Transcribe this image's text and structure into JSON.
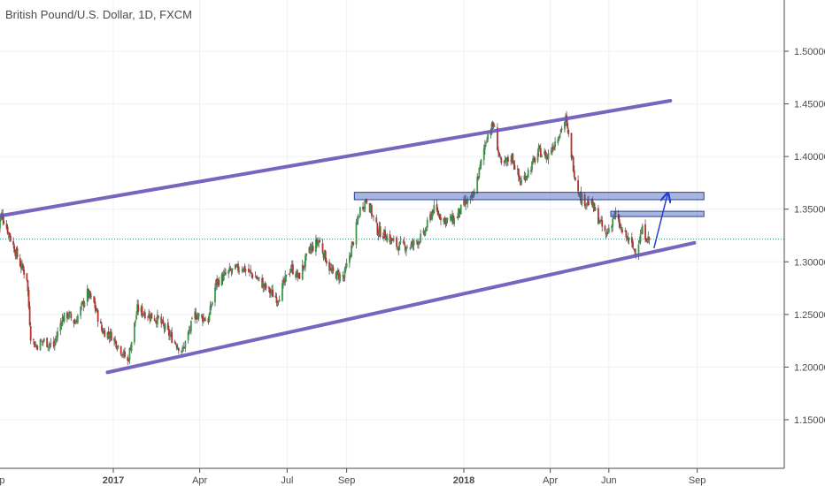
{
  "header": {
    "title": "British Pound/U.S. Dollar, 1D, FXCM"
  },
  "chart_data": {
    "type": "candlestick",
    "symbol": "GBPUSD",
    "interval": "1D",
    "source": "FXCM",
    "y_axis": {
      "position": "right",
      "range": [
        1.1,
        1.53
      ],
      "ticks": [
        "1.50000",
        "1.45000",
        "1.40000",
        "1.35000",
        "1.30000",
        "1.25000",
        "1.20000",
        "1.15000"
      ]
    },
    "x_axis": {
      "range": [
        "2016-09-01",
        "2018-10-31"
      ],
      "ticks": [
        {
          "label": "Sep",
          "date": "2016-09-01"
        },
        {
          "label": "2017",
          "date": "2017-01-01"
        },
        {
          "label": "Apr",
          "date": "2017-04-01"
        },
        {
          "label": "Jul",
          "date": "2017-07-01"
        },
        {
          "label": "Sep",
          "date": "2017-09-01"
        },
        {
          "label": "2018",
          "date": "2018-01-01"
        },
        {
          "label": "Apr",
          "date": "2018-04-01"
        },
        {
          "label": "Jun",
          "date": "2018-06-01"
        },
        {
          "label": "Sep",
          "date": "2018-09-01"
        }
      ]
    },
    "grid": true,
    "price_points": [
      [
        "2016-09-01",
        1.33
      ],
      [
        "2016-09-07",
        1.345
      ],
      [
        "2016-09-15",
        1.325
      ],
      [
        "2016-09-25",
        1.3
      ],
      [
        "2016-10-03",
        1.285
      ],
      [
        "2016-10-07",
        1.23
      ],
      [
        "2016-10-12",
        1.22
      ],
      [
        "2016-10-20",
        1.225
      ],
      [
        "2016-10-31",
        1.22
      ],
      [
        "2016-11-08",
        1.245
      ],
      [
        "2016-11-15",
        1.25
      ],
      [
        "2016-11-22",
        1.242
      ],
      [
        "2016-12-05",
        1.27
      ],
      [
        "2016-12-12",
        1.26
      ],
      [
        "2016-12-20",
        1.235
      ],
      [
        "2016-12-30",
        1.23
      ],
      [
        "2017-01-10",
        1.215
      ],
      [
        "2017-01-16",
        1.205
      ],
      [
        "2017-01-26",
        1.255
      ],
      [
        "2017-02-06",
        1.25
      ],
      [
        "2017-02-17",
        1.245
      ],
      [
        "2017-03-01",
        1.23
      ],
      [
        "2017-03-14",
        1.215
      ],
      [
        "2017-03-27",
        1.25
      ],
      [
        "2017-04-10",
        1.245
      ],
      [
        "2017-04-18",
        1.28
      ],
      [
        "2017-05-01",
        1.29
      ],
      [
        "2017-05-15",
        1.295
      ],
      [
        "2017-05-30",
        1.285
      ],
      [
        "2017-06-09",
        1.275
      ],
      [
        "2017-06-21",
        1.265
      ],
      [
        "2017-07-05",
        1.295
      ],
      [
        "2017-07-13",
        1.285
      ],
      [
        "2017-07-24",
        1.31
      ],
      [
        "2017-08-03",
        1.32
      ],
      [
        "2017-08-16",
        1.29
      ],
      [
        "2017-08-29",
        1.285
      ],
      [
        "2017-09-08",
        1.32
      ],
      [
        "2017-09-15",
        1.35
      ],
      [
        "2017-09-22",
        1.36
      ],
      [
        "2017-10-03",
        1.33
      ],
      [
        "2017-10-12",
        1.325
      ],
      [
        "2017-10-24",
        1.315
      ],
      [
        "2017-11-07",
        1.315
      ],
      [
        "2017-11-20",
        1.325
      ],
      [
        "2017-11-30",
        1.35
      ],
      [
        "2017-12-12",
        1.34
      ],
      [
        "2017-12-22",
        1.34
      ],
      [
        "2018-01-02",
        1.355
      ],
      [
        "2018-01-10",
        1.36
      ],
      [
        "2018-01-18",
        1.39
      ],
      [
        "2018-01-25",
        1.42
      ],
      [
        "2018-02-01",
        1.43
      ],
      [
        "2018-02-09",
        1.39
      ],
      [
        "2018-02-20",
        1.4
      ],
      [
        "2018-03-01",
        1.375
      ],
      [
        "2018-03-12",
        1.39
      ],
      [
        "2018-03-20",
        1.405
      ],
      [
        "2018-03-29",
        1.4
      ],
      [
        "2018-04-09",
        1.42
      ],
      [
        "2018-04-17",
        1.435
      ],
      [
        "2018-04-27",
        1.38
      ],
      [
        "2018-05-03",
        1.36
      ],
      [
        "2018-05-14",
        1.355
      ],
      [
        "2018-05-29",
        1.325
      ],
      [
        "2018-06-07",
        1.345
      ],
      [
        "2018-06-14",
        1.33
      ],
      [
        "2018-06-22",
        1.32
      ],
      [
        "2018-06-28",
        1.31
      ],
      [
        "2018-07-06",
        1.33
      ],
      [
        "2018-07-13",
        1.32
      ]
    ],
    "current_price": 1.3215,
    "annotations": [
      {
        "kind": "trendline",
        "name": "upper-channel",
        "color": "#6b54b8",
        "from": [
          "2016-09-01",
          1.343
        ],
        "to": [
          "2018-08-04",
          1.453
        ]
      },
      {
        "kind": "trendline",
        "name": "lower-channel",
        "color": "#6b54b8",
        "from": [
          "2016-12-26",
          1.195
        ],
        "to": [
          "2018-08-29",
          1.318
        ]
      },
      {
        "kind": "zone",
        "name": "resistance-zone-upper",
        "color": "#3b5cb8",
        "from": [
          "2017-09-09",
          1.366
        ],
        "to": [
          "2018-09-08",
          1.359
        ]
      },
      {
        "kind": "zone",
        "name": "resistance-zone-lower",
        "color": "#3b5cb8",
        "from": [
          "2018-06-03",
          1.348
        ],
        "to": [
          "2018-09-08",
          1.343
        ]
      },
      {
        "kind": "arrow",
        "name": "projection-arrow",
        "color": "#1f3fd6",
        "from": [
          "2018-07-18",
          1.313
        ],
        "to": [
          "2018-08-01",
          1.364
        ]
      }
    ]
  }
}
